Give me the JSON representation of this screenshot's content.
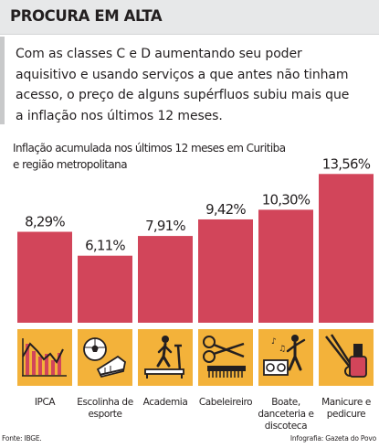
{
  "header": {
    "title": "PROCURA EM ALTA"
  },
  "lead": {
    "lines": [
      "Com as classes C e D aumentando seu poder",
      "aquisitivo e usando serviços a que antes não tinham",
      "acesso, o preço de alguns supérfluos subiu mais que",
      "a inflação nos últimos 12 meses."
    ]
  },
  "chart_data": {
    "type": "bar",
    "title": "",
    "subtitle_lines": [
      "Inflação acumulada nos últimos 12 meses em Curitiba",
      "e região metropolitana"
    ],
    "categories": [
      [
        "IPCA"
      ],
      [
        "Escolinha de",
        "esporte"
      ],
      [
        "Academia"
      ],
      [
        "Cabeleireiro"
      ],
      [
        "Boate,",
        "danceteria e",
        "discoteca"
      ],
      [
        "Manicure e",
        "pedicure"
      ]
    ],
    "values": [
      8.29,
      6.11,
      7.91,
      9.42,
      10.3,
      13.56
    ],
    "value_labels": [
      "8,29%",
      "6,11%",
      "7,91%",
      "9,42%",
      "10,30%",
      "13,56%"
    ],
    "icons": [
      "line-chart-icon",
      "soccer-ball-shoe-icon",
      "treadmill-icon",
      "scissors-comb-icon",
      "dancer-stereo-icon",
      "nail-polish-clippers-icon"
    ],
    "xlabel": "",
    "ylabel": "",
    "axis_visible": false,
    "grid": false,
    "bar_color": "#d2455a",
    "icon_bg_color": "#f3b23a"
  },
  "footer": {
    "source": "Fonte: IBGE.",
    "credit": "Infografia: Gazeta do Povo"
  }
}
